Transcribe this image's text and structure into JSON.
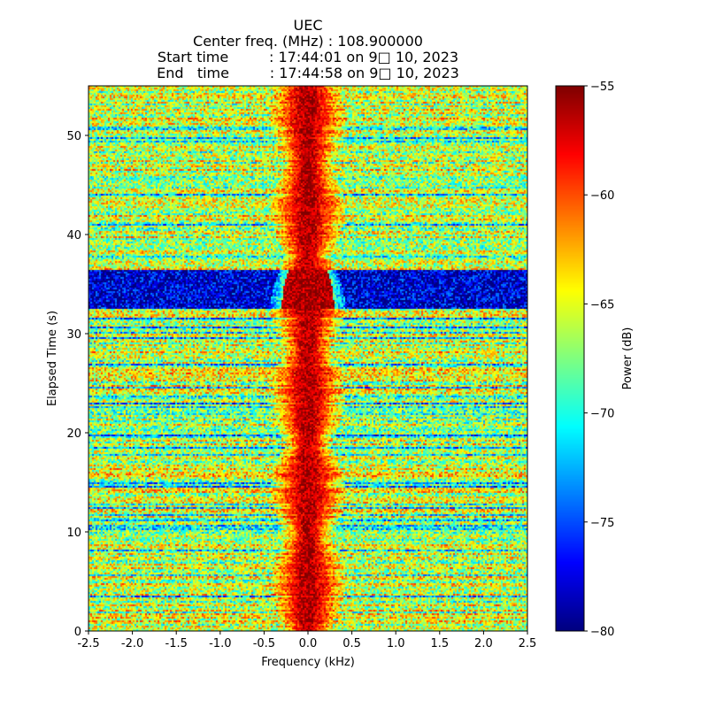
{
  "chart_data": {
    "type": "heatmap",
    "title_lines": [
      "UEC",
      "Center freq. (MHz) : 108.900000",
      "Start time         : 17:44:01 on 9□ 10, 2023",
      "End   time         : 17:44:58 on 9□ 10, 2023"
    ],
    "xlabel": "Frequency (kHz)",
    "ylabel": "Elapsed Time (s)",
    "xlim": [
      -2.5,
      2.5
    ],
    "ylim": [
      0,
      55
    ],
    "x_ticks": [
      "-2.5",
      "-2.0",
      "-1.5",
      "-1.0",
      "-0.5",
      "0.0",
      "0.5",
      "1.0",
      "1.5",
      "2.0",
      "2.5"
    ],
    "y_ticks": [
      "0",
      "10",
      "20",
      "30",
      "40",
      "50"
    ],
    "colorbar": {
      "label": "Power (dB)",
      "range": [
        -80,
        -55
      ],
      "ticks": [
        "−80",
        "−75",
        "−70",
        "−65",
        "−60",
        "−55"
      ],
      "colormap": "jet"
    },
    "features": {
      "center_signal_freq_khz": 0.0,
      "center_signal_halfwidth_khz": 0.35,
      "center_signal_power_db": -56,
      "low_power_band_s": [
        32.5,
        36.5
      ],
      "low_power_band_db": -78,
      "background_power_db": -66
    }
  }
}
